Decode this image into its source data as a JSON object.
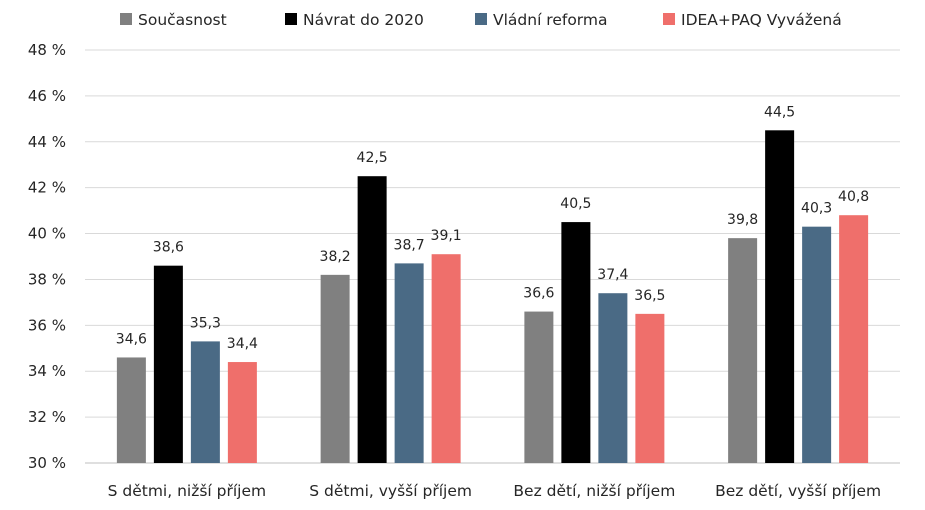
{
  "chart_data": {
    "type": "bar",
    "categories": [
      "S dětmi, nižší příjem",
      "S dětmi, vyšší příjem",
      "Bez dětí, nižší příjem",
      "Bez dětí, vyšší příjem"
    ],
    "series": [
      {
        "name": "Současnost",
        "color": "#808080",
        "values": [
          34.6,
          38.2,
          36.6,
          39.8
        ],
        "labels": [
          "34,6",
          "38,2",
          "36,6",
          "39,8"
        ]
      },
      {
        "name": "Návrat do 2020",
        "color": "#000000",
        "values": [
          38.6,
          42.5,
          40.5,
          44.5
        ],
        "labels": [
          "38,6",
          "42,5",
          "40,5",
          "44,5"
        ]
      },
      {
        "name": "Vládní reforma",
        "color": "#4a6a85",
        "values": [
          35.3,
          38.7,
          37.4,
          40.3
        ],
        "labels": [
          "35,3",
          "38,7",
          "37,4",
          "40,3"
        ]
      },
      {
        "name": "IDEA+PAQ Vyvážená",
        "color": "#ef6f6b",
        "values": [
          34.4,
          39.1,
          36.5,
          40.8
        ],
        "labels": [
          "34,4",
          "39,1",
          "36,5",
          "40,8"
        ]
      }
    ],
    "ylim": [
      30,
      48
    ],
    "yticks": [
      30,
      32,
      34,
      36,
      38,
      40,
      42,
      44,
      46,
      48
    ],
    "ytick_labels": [
      "30 %",
      "32 %",
      "34 %",
      "36 %",
      "38 %",
      "40 %",
      "42 %",
      "44 %",
      "46 %",
      "48 %"
    ],
    "title": "",
    "xlabel": "",
    "ylabel": "",
    "grid": true,
    "legend": "top"
  }
}
